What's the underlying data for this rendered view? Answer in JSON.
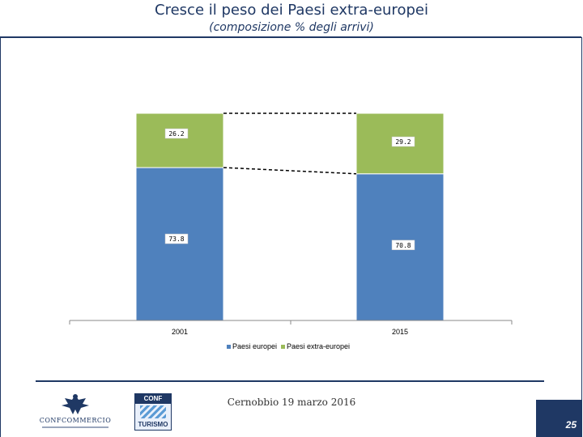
{
  "header": {
    "title": "Cresce il peso dei Paesi extra-europei",
    "subtitle": "(composizione % degli arrivi)"
  },
  "chart_data": {
    "type": "bar",
    "stacked": true,
    "categories": [
      "2001",
      "2015"
    ],
    "series": [
      {
        "name": "Paesi europei",
        "values": [
          73.8,
          70.8
        ],
        "color": "#4f81bd"
      },
      {
        "name": "Paesi extra-europei",
        "values": [
          26.2,
          29.2
        ],
        "color": "#9bbb59"
      }
    ],
    "data_labels": [
      [
        "73.8",
        "70.8"
      ],
      [
        "26.2",
        "29.2"
      ]
    ],
    "ylim": [
      0,
      100
    ],
    "legend_position": "bottom",
    "grid": false,
    "series_lines": true
  },
  "footer": {
    "location_date": "Cernobbio 19 marzo 2016",
    "page_number": "25",
    "logo_left": "logo-confcommercio",
    "logo_right": "logo-conf-turismo"
  }
}
